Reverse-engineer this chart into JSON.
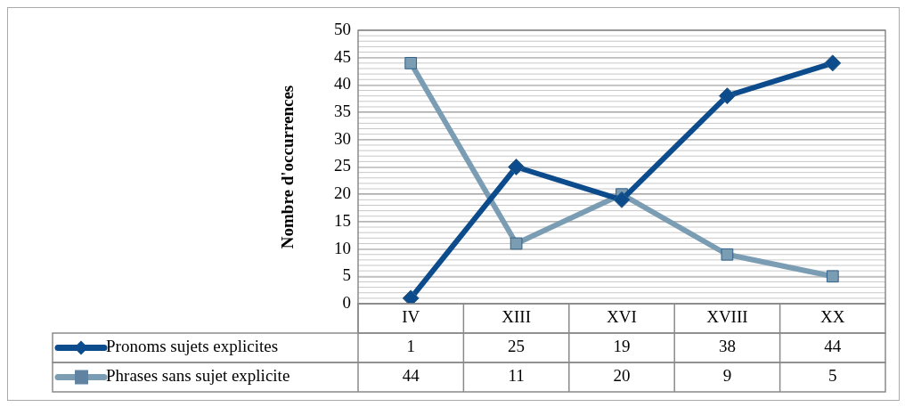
{
  "chart_data": {
    "type": "line",
    "ylabel": "Nombre d'occurrences",
    "categories": [
      "IV",
      "XIII",
      "XVI",
      "XVIII",
      "XX"
    ],
    "series": [
      {
        "name": "Pronoms sujets explicites",
        "color": "#0d4c8c",
        "marker": "diamond",
        "values": [
          1,
          25,
          19,
          38,
          44
        ]
      },
      {
        "name": "Phrases sans sujet explicite",
        "color": "#7b9db3",
        "marker": "square",
        "values": [
          44,
          11,
          20,
          9,
          5
        ]
      }
    ],
    "ylim": [
      0,
      50
    ],
    "yticks": [
      0,
      5,
      10,
      15,
      20,
      25,
      30,
      35,
      40,
      45,
      50
    ],
    "grid": "y",
    "legend": "bottom",
    "data_labels": true,
    "line_style": "solid"
  }
}
